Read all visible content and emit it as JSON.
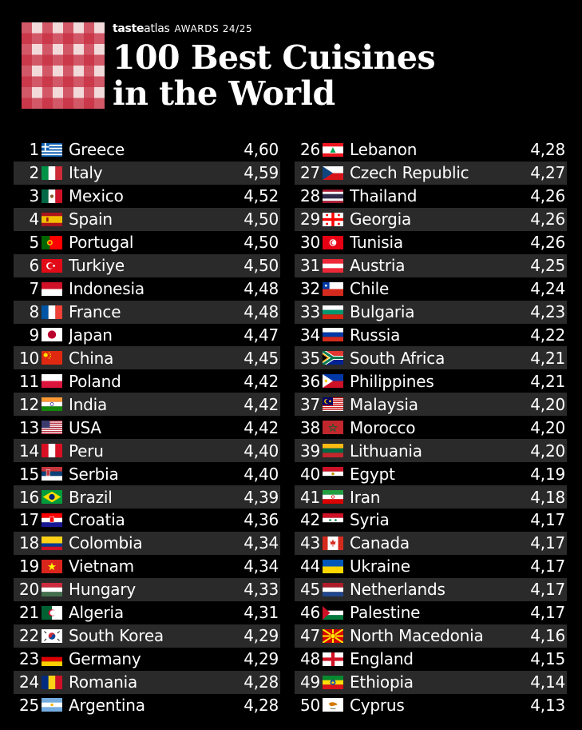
{
  "header": {
    "brand_bold": "taste",
    "brand_light": "atlas",
    "awards": "AWARDS 24/25",
    "title_line1": "100 Best Cuisines",
    "title_line2": "in the World"
  },
  "ranking": [
    {
      "rank": "1",
      "country": "Greece",
      "score": "4,60",
      "flag": "greece"
    },
    {
      "rank": "2",
      "country": "Italy",
      "score": "4,59",
      "flag": "italy"
    },
    {
      "rank": "3",
      "country": "Mexico",
      "score": "4,52",
      "flag": "mexico"
    },
    {
      "rank": "4",
      "country": "Spain",
      "score": "4,50",
      "flag": "spain"
    },
    {
      "rank": "5",
      "country": "Portugal",
      "score": "4,50",
      "flag": "portugal"
    },
    {
      "rank": "6",
      "country": "Turkiye",
      "score": "4,50",
      "flag": "turkiye"
    },
    {
      "rank": "7",
      "country": "Indonesia",
      "score": "4,48",
      "flag": "indonesia"
    },
    {
      "rank": "8",
      "country": "France",
      "score": "4,48",
      "flag": "france"
    },
    {
      "rank": "9",
      "country": "Japan",
      "score": "4,47",
      "flag": "japan"
    },
    {
      "rank": "10",
      "country": "China",
      "score": "4,45",
      "flag": "china"
    },
    {
      "rank": "11",
      "country": "Poland",
      "score": "4,42",
      "flag": "poland"
    },
    {
      "rank": "12",
      "country": "India",
      "score": "4,42",
      "flag": "india"
    },
    {
      "rank": "13",
      "country": "USA",
      "score": "4,42",
      "flag": "usa"
    },
    {
      "rank": "14",
      "country": "Peru",
      "score": "4,40",
      "flag": "peru"
    },
    {
      "rank": "15",
      "country": "Serbia",
      "score": "4,40",
      "flag": "serbia"
    },
    {
      "rank": "16",
      "country": "Brazil",
      "score": "4,39",
      "flag": "brazil"
    },
    {
      "rank": "17",
      "country": "Croatia",
      "score": "4,36",
      "flag": "croatia"
    },
    {
      "rank": "18",
      "country": "Colombia",
      "score": "4,34",
      "flag": "colombia"
    },
    {
      "rank": "19",
      "country": "Vietnam",
      "score": "4,34",
      "flag": "vietnam"
    },
    {
      "rank": "20",
      "country": "Hungary",
      "score": "4,33",
      "flag": "hungary"
    },
    {
      "rank": "21",
      "country": "Algeria",
      "score": "4,31",
      "flag": "algeria"
    },
    {
      "rank": "22",
      "country": "South Korea",
      "score": "4,29",
      "flag": "south-korea"
    },
    {
      "rank": "23",
      "country": "Germany",
      "score": "4,29",
      "flag": "germany"
    },
    {
      "rank": "24",
      "country": "Romania",
      "score": "4,28",
      "flag": "romania"
    },
    {
      "rank": "25",
      "country": "Argentina",
      "score": "4,28",
      "flag": "argentina"
    },
    {
      "rank": "26",
      "country": "Lebanon",
      "score": "4,28",
      "flag": "lebanon"
    },
    {
      "rank": "27",
      "country": "Czech Republic",
      "score": "4,27",
      "flag": "czech-republic"
    },
    {
      "rank": "28",
      "country": "Thailand",
      "score": "4,26",
      "flag": "thailand"
    },
    {
      "rank": "29",
      "country": "Georgia",
      "score": "4,26",
      "flag": "georgia"
    },
    {
      "rank": "30",
      "country": "Tunisia",
      "score": "4,26",
      "flag": "tunisia"
    },
    {
      "rank": "31",
      "country": "Austria",
      "score": "4,25",
      "flag": "austria"
    },
    {
      "rank": "32",
      "country": "Chile",
      "score": "4,24",
      "flag": "chile"
    },
    {
      "rank": "33",
      "country": "Bulgaria",
      "score": "4,23",
      "flag": "bulgaria"
    },
    {
      "rank": "34",
      "country": "Russia",
      "score": "4,22",
      "flag": "russia"
    },
    {
      "rank": "35",
      "country": "South Africa",
      "score": "4,21",
      "flag": "south-africa"
    },
    {
      "rank": "36",
      "country": "Philippines",
      "score": "4,21",
      "flag": "philippines"
    },
    {
      "rank": "37",
      "country": "Malaysia",
      "score": "4,20",
      "flag": "malaysia"
    },
    {
      "rank": "38",
      "country": "Morocco",
      "score": "4,20",
      "flag": "morocco"
    },
    {
      "rank": "39",
      "country": "Lithuania",
      "score": "4,20",
      "flag": "lithuania"
    },
    {
      "rank": "40",
      "country": "Egypt",
      "score": "4,19",
      "flag": "egypt"
    },
    {
      "rank": "41",
      "country": "Iran",
      "score": "4,18",
      "flag": "iran"
    },
    {
      "rank": "42",
      "country": "Syria",
      "score": "4,17",
      "flag": "syria"
    },
    {
      "rank": "43",
      "country": "Canada",
      "score": "4,17",
      "flag": "canada"
    },
    {
      "rank": "44",
      "country": "Ukraine",
      "score": "4,17",
      "flag": "ukraine"
    },
    {
      "rank": "45",
      "country": "Netherlands",
      "score": "4,17",
      "flag": "netherlands"
    },
    {
      "rank": "46",
      "country": "Palestine",
      "score": "4,17",
      "flag": "palestine"
    },
    {
      "rank": "47",
      "country": "North Macedonia",
      "score": "4,16",
      "flag": "north-macedonia"
    },
    {
      "rank": "48",
      "country": "England",
      "score": "4,15",
      "flag": "england"
    },
    {
      "rank": "49",
      "country": "Ethiopia",
      "score": "4,14",
      "flag": "ethiopia"
    },
    {
      "rank": "50",
      "country": "Cyprus",
      "score": "4,13",
      "flag": "cyprus"
    }
  ]
}
